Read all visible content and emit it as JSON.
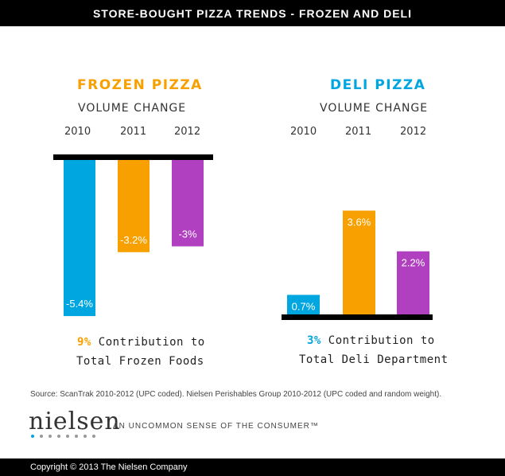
{
  "header": {
    "title": "STORE-BOUGHT PIZZA TRENDS - FROZEN AND DELI"
  },
  "colors": {
    "y2010": "#00a6e0",
    "y2011": "#f7a000",
    "y2012": "#b040c0",
    "baseline": "#000000",
    "text_dark": "#333333"
  },
  "chart_data": [
    {
      "type": "bar",
      "title": "FROZEN PIZZA",
      "subtitle": "VOLUME CHANGE",
      "categories": [
        "2010",
        "2011",
        "2012"
      ],
      "values": [
        -5.4,
        -3.2,
        -3
      ],
      "labels": [
        "-5.4%",
        "-3.2%",
        "-3%"
      ],
      "contribution": {
        "pct": "9%",
        "line1": "Contribution to",
        "line2": "Total Frozen Foods"
      }
    },
    {
      "type": "bar",
      "title": "DELI PIZZA",
      "subtitle": "VOLUME CHANGE",
      "categories": [
        "2010",
        "2011",
        "2012"
      ],
      "values": [
        0.7,
        3.6,
        2.2
      ],
      "labels": [
        "0.7%",
        "3.6%",
        "2.2%"
      ],
      "contribution": {
        "pct": "3%",
        "line1": "Contribution to",
        "line2": "Total Deli Department"
      }
    }
  ],
  "source": "Source: ScanTrak 2010-2012 (UPC coded). Nielsen Perishables Group 2010-2012 (UPC coded and random weight).",
  "brand": {
    "logo": "nielsen",
    "tagline": "AN UNCOMMON SENSE OF THE CONSUMER™"
  },
  "footer": {
    "copyright": "Copyright © 2013 The Nielsen Company"
  }
}
